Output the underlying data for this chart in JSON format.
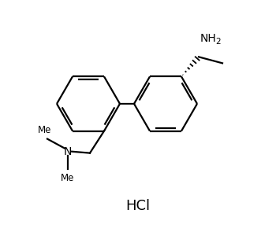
{
  "bond_color": "#000000",
  "text_color": "#000000",
  "hcl_text": "HCl",
  "nh2_text": "NH",
  "nh2_sub": "2",
  "n_label": "N",
  "lw": 1.6,
  "lw_bold": 3.5
}
